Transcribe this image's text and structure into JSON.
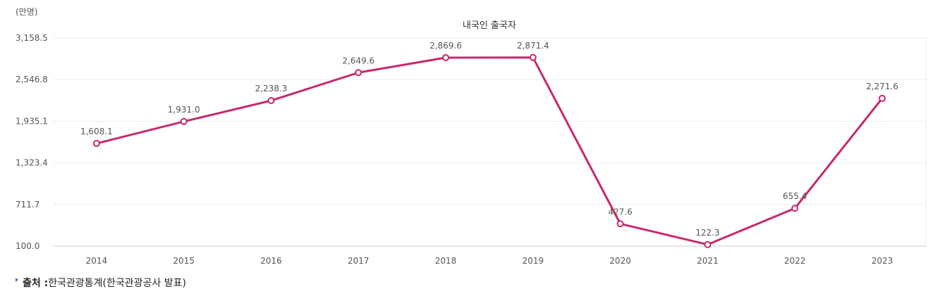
{
  "chart_data": {
    "type": "line",
    "title": "내국인 출국자",
    "unit": "(만명)",
    "x": [
      "2014",
      "2015",
      "2016",
      "2017",
      "2018",
      "2019",
      "2020",
      "2021",
      "2022",
      "2023"
    ],
    "series": [
      {
        "values": [
          1608.1,
          1931.0,
          2238.3,
          2649.6,
          2869.6,
          2871.4,
          427.6,
          122.3,
          655.4,
          2271.6
        ],
        "data_labels": [
          "1,608.1",
          "1,931.0",
          "2,238.3",
          "2,649.6",
          "2,869.6",
          "2,871.4",
          "427.6",
          "122.3",
          "655.4",
          "2,271.6"
        ],
        "color": "#c8286e"
      }
    ],
    "yticks": [
      100.0,
      711.7,
      1323.4,
      1935.1,
      2546.8,
      3158.5
    ],
    "ytick_labels": [
      "100.0",
      "711.7",
      "1,323.4",
      "1,935.1",
      "2,546.8",
      "3,158.5"
    ],
    "ylim": [
      100.0,
      3158.5
    ],
    "grid": true,
    "legend": "none"
  },
  "source": {
    "label": "출처 : ",
    "text": "한국관광통계(한국관광공사 발표)"
  }
}
